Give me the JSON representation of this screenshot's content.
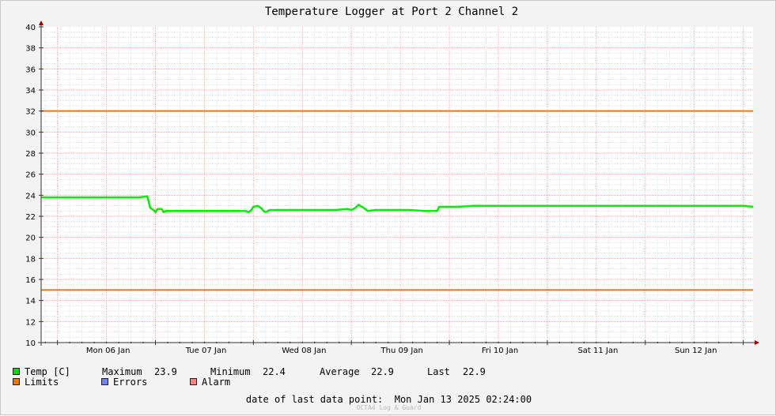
{
  "chart_data": {
    "type": "line",
    "title": "Temperature Logger at Port 2 Channel 2",
    "ylim": [
      10,
      40
    ],
    "yticks": [
      10,
      12,
      14,
      16,
      18,
      20,
      22,
      24,
      26,
      28,
      30,
      32,
      34,
      36,
      38,
      40
    ],
    "xlim": [
      "2025-01-05 20:00",
      "2025-01-13 02:24"
    ],
    "xticks": [
      {
        "label": "Mon 06 Jan",
        "at": "2025-01-06 00:00"
      },
      {
        "label": "Tue 07 Jan",
        "at": "2025-01-07 00:00"
      },
      {
        "label": "Wed 08 Jan",
        "at": "2025-01-08 00:00"
      },
      {
        "label": "Thu 09 Jan",
        "at": "2025-01-09 00:00"
      },
      {
        "label": "Fri 10 Jan",
        "at": "2025-01-10 00:00"
      },
      {
        "label": "Sat 11 Jan",
        "at": "2025-01-11 00:00"
      },
      {
        "label": "Sun 12 Jan",
        "at": "2025-01-12 00:00"
      }
    ],
    "grid": true,
    "series": [
      {
        "name": "Temp [C]",
        "color": "#00ee00",
        "points": [
          [
            "2025-01-05 20:00",
            23.8
          ],
          [
            "2025-01-05 22:00",
            23.8
          ],
          [
            "2025-01-06 00:00",
            23.8
          ],
          [
            "2025-01-06 02:00",
            23.8
          ],
          [
            "2025-01-06 04:00",
            23.8
          ],
          [
            "2025-01-06 08:00",
            23.8
          ],
          [
            "2025-01-06 12:00",
            23.8
          ],
          [
            "2025-01-06 16:00",
            23.8
          ],
          [
            "2025-01-06 20:00",
            23.8
          ],
          [
            "2025-01-06 22:00",
            23.9
          ],
          [
            "2025-01-06 22:45",
            22.8
          ],
          [
            "2025-01-06 23:30",
            22.6
          ],
          [
            "2025-01-07 00:00",
            22.4
          ],
          [
            "2025-01-07 00:30",
            22.7
          ],
          [
            "2025-01-07 01:30",
            22.7
          ],
          [
            "2025-01-07 02:00",
            22.4
          ],
          [
            "2025-01-07 02:40",
            22.5
          ],
          [
            "2025-01-07 06:00",
            22.5
          ],
          [
            "2025-01-07 12:00",
            22.5
          ],
          [
            "2025-01-07 18:00",
            22.5
          ],
          [
            "2025-01-07 22:00",
            22.5
          ],
          [
            "2025-01-07 22:50",
            22.4
          ],
          [
            "2025-01-07 23:30",
            22.6
          ],
          [
            "2025-01-08 00:00",
            22.9
          ],
          [
            "2025-01-08 01:00",
            23.0
          ],
          [
            "2025-01-08 01:50",
            22.8
          ],
          [
            "2025-01-08 02:30",
            22.5
          ],
          [
            "2025-01-08 03:00",
            22.4
          ],
          [
            "2025-01-08 04:00",
            22.6
          ],
          [
            "2025-01-08 08:00",
            22.6
          ],
          [
            "2025-01-08 12:00",
            22.6
          ],
          [
            "2025-01-08 16:00",
            22.6
          ],
          [
            "2025-01-08 20:00",
            22.6
          ],
          [
            "2025-01-08 23:00",
            22.7
          ],
          [
            "2025-01-09 00:00",
            22.6
          ],
          [
            "2025-01-09 01:00",
            22.8
          ],
          [
            "2025-01-09 01:45",
            23.1
          ],
          [
            "2025-01-09 03:00",
            22.8
          ],
          [
            "2025-01-09 04:00",
            22.5
          ],
          [
            "2025-01-09 06:00",
            22.6
          ],
          [
            "2025-01-09 10:00",
            22.6
          ],
          [
            "2025-01-09 14:00",
            22.6
          ],
          [
            "2025-01-09 18:00",
            22.5
          ],
          [
            "2025-01-09 21:00",
            22.5
          ],
          [
            "2025-01-09 21:30",
            22.9
          ],
          [
            "2025-01-10 00:00",
            22.9
          ],
          [
            "2025-01-10 02:00",
            22.9
          ],
          [
            "2025-01-10 06:00",
            23.0
          ],
          [
            "2025-01-10 12:00",
            23.0
          ],
          [
            "2025-01-10 18:00",
            23.0
          ],
          [
            "2025-01-11 00:00",
            23.0
          ],
          [
            "2025-01-11 06:00",
            23.0
          ],
          [
            "2025-01-11 12:00",
            23.0
          ],
          [
            "2025-01-11 18:00",
            23.0
          ],
          [
            "2025-01-12 00:00",
            23.0
          ],
          [
            "2025-01-12 06:00",
            23.0
          ],
          [
            "2025-01-12 12:00",
            23.0
          ],
          [
            "2025-01-12 18:00",
            23.0
          ],
          [
            "2025-01-13 00:00",
            23.0
          ],
          [
            "2025-01-13 02:24",
            22.9
          ]
        ]
      }
    ],
    "limits": {
      "name": "Limits",
      "color": "#ee7700",
      "values": [
        32,
        15
      ]
    }
  },
  "legend": {
    "temp": {
      "label": "Temp [C]",
      "color": "#00dd00"
    },
    "maximum": {
      "label": "Maximum",
      "value": "23.9"
    },
    "minimum": {
      "label": "Minimum",
      "value": "22.4"
    },
    "average": {
      "label": "Average",
      "value": "22.9"
    },
    "last": {
      "label": "Last",
      "value": "22.9"
    },
    "limits": {
      "label": "Limits",
      "color": "#ee7700"
    },
    "errors": {
      "label": "Errors",
      "color": "#7080ff"
    },
    "alarm": {
      "label": "Alarm",
      "color": "#ff8080"
    }
  },
  "footer": {
    "last_point_label": "date of last data point:",
    "last_point_value": "Mon Jan 13 2025 02:24:00",
    "watermark": "OCTA4 Log & Guard"
  }
}
